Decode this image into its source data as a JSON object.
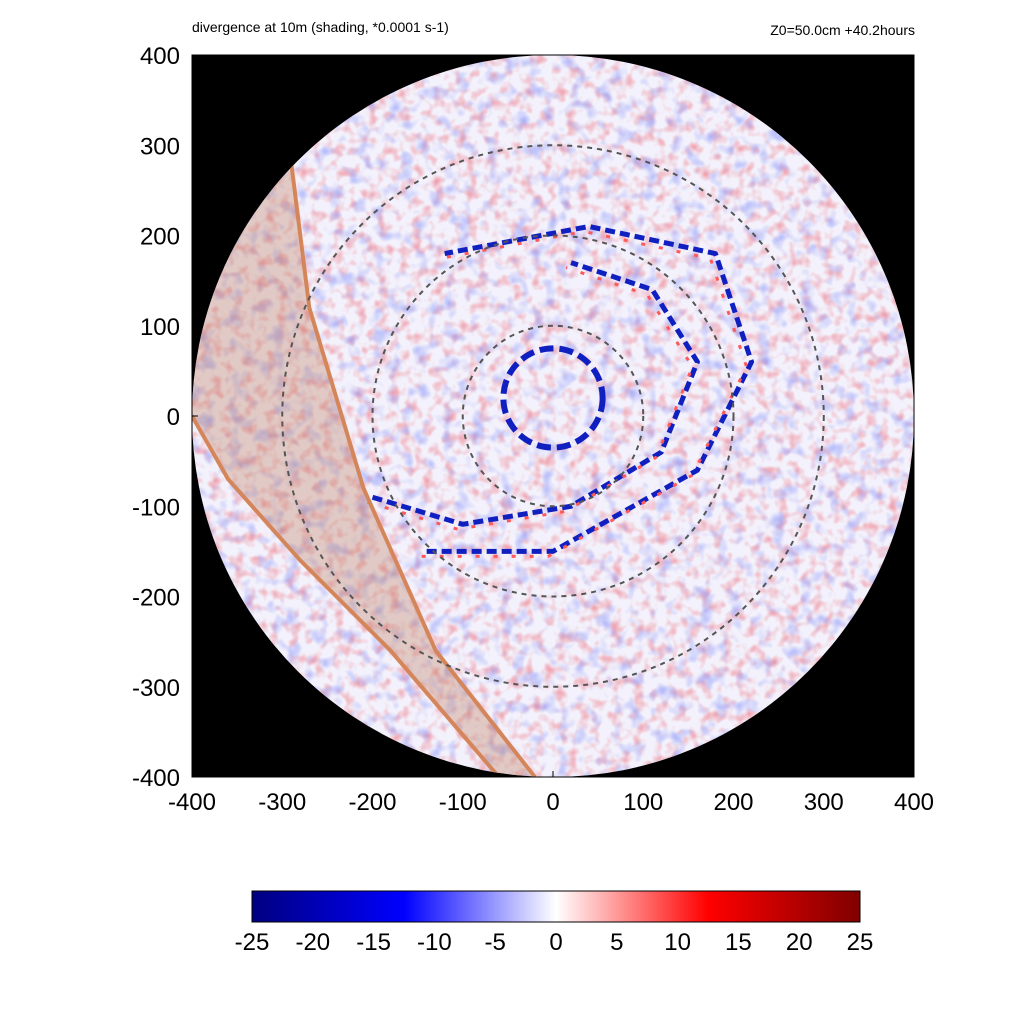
{
  "chart_data": {
    "type": "heatmap",
    "title": "divergence at 10m (shading, *0.0001 s-1)",
    "subtitle": "Z0=50.0cm  +40.2hours",
    "xlim": [
      -400,
      400
    ],
    "ylim": [
      -400,
      400
    ],
    "x_ticks": [
      "-400",
      "-300",
      "-200",
      "-100",
      "0",
      "100",
      "200",
      "300",
      "400"
    ],
    "y_ticks": [
      "400",
      "300",
      "200",
      "100",
      "0",
      "-100",
      "-200",
      "-300",
      "-400"
    ],
    "domain_radius": 400,
    "reference_circle_radii": [
      100,
      200,
      300
    ],
    "outside_domain_color": "#000000",
    "colorbar": {
      "range": [
        -25,
        25
      ],
      "tick_labels": [
        "-25",
        "-20",
        "-15",
        "-10",
        "-5",
        "0",
        "5",
        "10",
        "15",
        "20",
        "25"
      ],
      "colors": [
        "#000080",
        "#0000ff",
        "#ffffff",
        "#ff0000",
        "#800000"
      ]
    },
    "features": [
      {
        "name": "convergence eyewall ring",
        "center": [
          0,
          20
        ],
        "radius": 55,
        "sign": "negative"
      },
      {
        "name": "spiral rainband",
        "sign": "negative",
        "path_xy": [
          [
            -200,
            -90
          ],
          [
            -100,
            -120
          ],
          [
            20,
            -100
          ],
          [
            120,
            -40
          ],
          [
            160,
            60
          ],
          [
            110,
            140
          ],
          [
            20,
            170
          ]
        ]
      },
      {
        "name": "outer rainband",
        "sign": "negative",
        "path_xy": [
          [
            -140,
            -150
          ],
          [
            0,
            -150
          ],
          [
            160,
            -60
          ],
          [
            220,
            60
          ],
          [
            180,
            180
          ],
          [
            40,
            210
          ],
          [
            -120,
            180
          ]
        ]
      }
    ],
    "shaded_band": {
      "color": "#c08060",
      "boundary_a_xy": [
        [
          -290,
          280
        ],
        [
          -270,
          120
        ],
        [
          -210,
          -80
        ],
        [
          -130,
          -260
        ],
        [
          -20,
          -400
        ]
      ],
      "boundary_b_xy": [
        [
          -400,
          0
        ],
        [
          -360,
          -70
        ],
        [
          -280,
          -160
        ],
        [
          -180,
          -260
        ],
        [
          -60,
          -400
        ]
      ]
    }
  }
}
